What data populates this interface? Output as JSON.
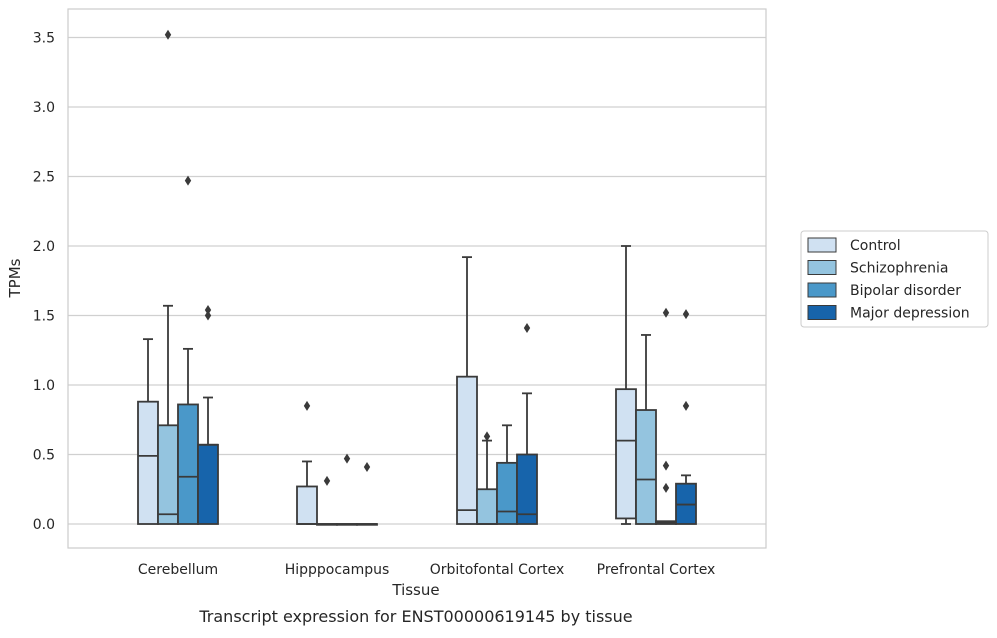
{
  "chart_data": {
    "type": "boxplot",
    "title": "Transcript expression for ENST00000619145 by tissue",
    "xlabel": "Tissue",
    "ylabel": "TPMs",
    "ylim": [
      -0.17,
      3.7
    ],
    "yticks": [
      "0.0",
      "0.5",
      "1.0",
      "1.5",
      "2.0",
      "2.5",
      "3.0",
      "3.5"
    ],
    "ytick_values": [
      0,
      0.5,
      1.0,
      1.5,
      2.0,
      2.5,
      3.0,
      3.5
    ],
    "grid": true,
    "legend_position": "right",
    "categories": [
      "Cerebellum",
      "Hipppocampus",
      "Orbitofontal Cortex",
      "Prefrontal Cortex"
    ],
    "series": [
      {
        "name": "Control",
        "color": "#d0e1f2",
        "boxes": [
          {
            "whislo": 0.0,
            "q1": 0.0,
            "med": 0.49,
            "q3": 0.88,
            "whishi": 1.33,
            "fliers": []
          },
          {
            "whislo": 0.0,
            "q1": 0.0,
            "med": 0.0,
            "q3": 0.27,
            "whishi": 0.45,
            "fliers": [
              0.85
            ]
          },
          {
            "whislo": 0.0,
            "q1": 0.0,
            "med": 0.1,
            "q3": 1.06,
            "whishi": 1.92,
            "fliers": []
          },
          {
            "whislo": 0.0,
            "q1": 0.04,
            "med": 0.6,
            "q3": 0.97,
            "whishi": 2.0,
            "fliers": []
          }
        ]
      },
      {
        "name": "Schizophrenia",
        "color": "#94c4df",
        "boxes": [
          {
            "whislo": 0.0,
            "q1": 0.0,
            "med": 0.07,
            "q3": 0.71,
            "whishi": 1.57,
            "fliers": [
              3.52
            ]
          },
          {
            "whislo": 0.0,
            "q1": 0.0,
            "med": 0.0,
            "q3": 0.0,
            "whishi": 0.0,
            "fliers": [
              0.31
            ]
          },
          {
            "whislo": 0.0,
            "q1": 0.0,
            "med": 0.0,
            "q3": 0.25,
            "whishi": 0.6,
            "fliers": [
              0.63
            ]
          },
          {
            "whislo": 0.0,
            "q1": 0.0,
            "med": 0.32,
            "q3": 0.82,
            "whishi": 1.36,
            "fliers": []
          }
        ]
      },
      {
        "name": "Bipolar disorder",
        "color": "#4a98c9",
        "boxes": [
          {
            "whislo": 0.0,
            "q1": 0.0,
            "med": 0.34,
            "q3": 0.86,
            "whishi": 1.26,
            "fliers": [
              2.47
            ]
          },
          {
            "whislo": 0.0,
            "q1": 0.0,
            "med": 0.0,
            "q3": 0.0,
            "whishi": 0.0,
            "fliers": [
              0.47
            ]
          },
          {
            "whislo": 0.0,
            "q1": 0.0,
            "med": 0.09,
            "q3": 0.44,
            "whishi": 0.71,
            "fliers": []
          },
          {
            "whislo": 0.0,
            "q1": 0.0,
            "med": 0.01,
            "q3": 0.02,
            "whishi": 0.02,
            "fliers": [
              0.42,
              0.26,
              1.52
            ]
          }
        ]
      },
      {
        "name": "Major depression",
        "color": "#1764ab",
        "boxes": [
          {
            "whislo": 0.0,
            "q1": 0.0,
            "med": 0.57,
            "q3": 0.57,
            "whishi": 0.91,
            "fliers": [
              1.5,
              1.54
            ]
          },
          {
            "whislo": 0.0,
            "q1": 0.0,
            "med": 0.0,
            "q3": 0.0,
            "whishi": 0.0,
            "fliers": [
              0.41
            ]
          },
          {
            "whislo": 0.0,
            "q1": 0.0,
            "med": 0.07,
            "q3": 0.5,
            "whishi": 0.94,
            "fliers": [
              1.41
            ]
          },
          {
            "whislo": 0.0,
            "q1": 0.0,
            "med": 0.14,
            "q3": 0.29,
            "whishi": 0.35,
            "fliers": [
              0.85,
              1.51
            ]
          }
        ]
      }
    ]
  }
}
